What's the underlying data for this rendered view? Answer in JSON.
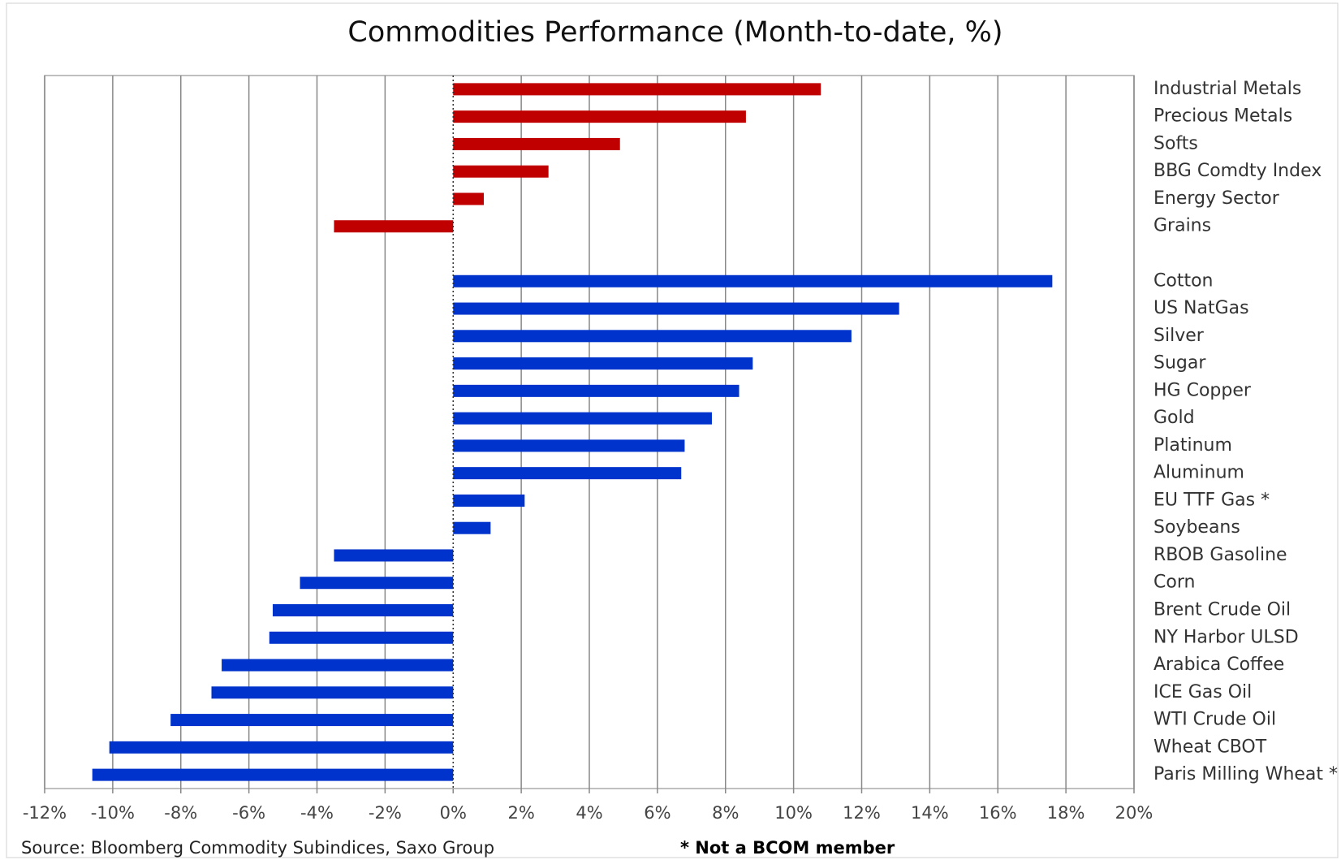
{
  "chart_data": {
    "type": "barh",
    "title": "Commodities Performance (Month-to-date, %)",
    "categories": [
      "Industrial Metals",
      "Precious Metals",
      "Softs",
      "BBG Comdty Index",
      "Energy Sector",
      "Grains",
      null,
      "Cotton",
      "US NatGas",
      "Silver",
      "Sugar",
      "HG Copper",
      "Gold",
      "Platinum",
      "Aluminum",
      "EU TTF Gas *",
      "Soybeans",
      "RBOB Gasoline",
      "Corn",
      "Brent Crude Oil",
      "NY Harbor ULSD",
      "Arabica Coffee",
      "ICE Gas Oil",
      "WTI Crude Oil",
      "Wheat CBOT",
      "Paris Milling Wheat *"
    ],
    "values": [
      10.8,
      8.6,
      4.9,
      2.8,
      0.9,
      -3.5,
      null,
      17.6,
      13.1,
      11.7,
      8.8,
      8.4,
      7.6,
      6.8,
      6.7,
      2.1,
      1.1,
      -3.5,
      -4.5,
      -5.3,
      -5.4,
      -6.8,
      -7.1,
      -8.3,
      -10.1,
      -10.6
    ],
    "colors": [
      "#c00000",
      "#c00000",
      "#c00000",
      "#c00000",
      "#c00000",
      "#c00000",
      null,
      "#0033cc",
      "#0033cc",
      "#0033cc",
      "#0033cc",
      "#0033cc",
      "#0033cc",
      "#0033cc",
      "#0033cc",
      "#0033cc",
      "#0033cc",
      "#0033cc",
      "#0033cc",
      "#0033cc",
      "#0033cc",
      "#0033cc",
      "#0033cc",
      "#0033cc",
      "#0033cc",
      "#0033cc"
    ],
    "xlim": [
      -12,
      20
    ],
    "xticks": [
      {
        "value": -12,
        "label": "-12%"
      },
      {
        "value": -10,
        "label": "-10%"
      },
      {
        "value": -8,
        "label": "-8%"
      },
      {
        "value": -6,
        "label": "-6%"
      },
      {
        "value": -4,
        "label": "-4%"
      },
      {
        "value": -2,
        "label": "-2%"
      },
      {
        "value": 0,
        "label": "0%"
      },
      {
        "value": 2,
        "label": "2%"
      },
      {
        "value": 4,
        "label": "4%"
      },
      {
        "value": 6,
        "label": "6%"
      },
      {
        "value": 8,
        "label": "8%"
      },
      {
        "value": 10,
        "label": "10%"
      },
      {
        "value": 12,
        "label": "12%"
      },
      {
        "value": 14,
        "label": "14%"
      },
      {
        "value": 16,
        "label": "16%"
      },
      {
        "value": 18,
        "label": "18%"
      },
      {
        "value": 20,
        "label": "20%"
      }
    ],
    "grid": true,
    "source": "Source: Bloomberg Commodity Subindices, Saxo Group",
    "note": "* Not a BCOM member"
  }
}
